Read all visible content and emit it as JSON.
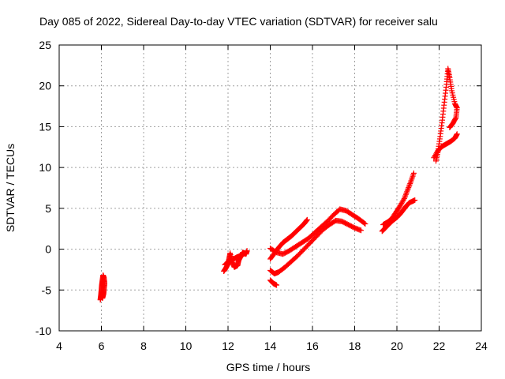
{
  "chart_data": {
    "type": "scatter",
    "title": "Day 085 of 2022, Sidereal Day-to-day VTEC variation (SDTVAR) for receiver salu",
    "xlabel": "GPS time / hours",
    "ylabel": "SDTVAR / TECUs",
    "xlim": [
      4,
      24
    ],
    "ylim": [
      -10,
      25
    ],
    "xticks": [
      4,
      6,
      8,
      10,
      12,
      14,
      16,
      18,
      20,
      22,
      24
    ],
    "yticks": [
      -10,
      -5,
      0,
      5,
      10,
      15,
      20,
      25
    ],
    "grid": true,
    "marker": "+",
    "color": "#ff0000",
    "series": [
      {
        "name": "SDTVAR",
        "segments": [
          [
            [
              5.95,
              -6.2
            ],
            [
              5.98,
              -5.6
            ],
            [
              6.0,
              -5.0
            ],
            [
              6.02,
              -4.4
            ],
            [
              6.05,
              -3.8
            ],
            [
              6.08,
              -3.2
            ],
            [
              6.12,
              -3.5
            ],
            [
              6.15,
              -4.2
            ],
            [
              6.12,
              -4.9
            ],
            [
              6.1,
              -5.5
            ],
            [
              6.05,
              -6.0
            ]
          ],
          [
            [
              11.8,
              -2.7
            ],
            [
              11.9,
              -2.3
            ],
            [
              12.0,
              -1.8
            ],
            [
              12.05,
              -1.2
            ],
            [
              12.1,
              -0.5
            ],
            [
              12.2,
              -1.6
            ],
            [
              12.3,
              -2.2
            ],
            [
              12.45,
              -2.0
            ],
            [
              12.5,
              -1.4
            ],
            [
              12.6,
              -0.9
            ],
            [
              12.7,
              -0.4
            ],
            [
              12.85,
              -0.6
            ],
            [
              12.9,
              -0.2
            ]
          ],
          [
            [
              11.85,
              -1.9
            ],
            [
              12.0,
              -1.6
            ],
            [
              12.2,
              -1.3
            ],
            [
              12.4,
              -1.0
            ],
            [
              12.6,
              -0.8
            ],
            [
              12.8,
              -0.5
            ]
          ],
          [
            [
              14.0,
              0.1
            ],
            [
              14.3,
              -0.4
            ],
            [
              14.6,
              -0.6
            ],
            [
              14.9,
              -0.2
            ],
            [
              15.2,
              0.3
            ],
            [
              15.5,
              0.8
            ],
            [
              15.8,
              1.3
            ],
            [
              16.1,
              2.0
            ],
            [
              16.4,
              2.7
            ],
            [
              16.7,
              3.4
            ],
            [
              17.0,
              4.2
            ],
            [
              17.3,
              4.9
            ],
            [
              17.6,
              4.7
            ],
            [
              17.9,
              4.2
            ],
            [
              18.2,
              3.7
            ],
            [
              18.5,
              3.1
            ]
          ],
          [
            [
              14.0,
              -2.6
            ],
            [
              14.2,
              -3.0
            ],
            [
              14.4,
              -2.8
            ],
            [
              14.7,
              -2.2
            ],
            [
              15.0,
              -1.5
            ],
            [
              15.3,
              -0.8
            ],
            [
              15.6,
              0.0
            ],
            [
              15.9,
              0.8
            ],
            [
              16.2,
              1.6
            ],
            [
              16.5,
              2.4
            ],
            [
              16.8,
              3.0
            ],
            [
              17.1,
              3.5
            ],
            [
              17.4,
              3.4
            ],
            [
              17.7,
              3.0
            ],
            [
              18.0,
              2.6
            ],
            [
              18.3,
              2.3
            ]
          ],
          [
            [
              14.0,
              -1.2
            ],
            [
              14.2,
              -0.5
            ],
            [
              14.4,
              0.2
            ],
            [
              14.6,
              0.8
            ],
            [
              14.8,
              1.2
            ],
            [
              15.0,
              1.6
            ],
            [
              15.2,
              2.1
            ],
            [
              15.4,
              2.6
            ],
            [
              15.6,
              3.1
            ],
            [
              15.75,
              3.6
            ]
          ],
          [
            [
              14.0,
              -3.8
            ],
            [
              14.15,
              -4.2
            ],
            [
              14.3,
              -4.4
            ]
          ],
          [
            [
              19.3,
              2.2
            ],
            [
              19.45,
              2.6
            ],
            [
              19.6,
              3.0
            ],
            [
              19.8,
              3.5
            ],
            [
              20.0,
              3.9
            ],
            [
              20.15,
              4.3
            ],
            [
              20.3,
              4.8
            ],
            [
              20.45,
              5.3
            ],
            [
              20.6,
              5.7
            ],
            [
              20.85,
              6.0
            ]
          ],
          [
            [
              19.35,
              3.0
            ],
            [
              19.55,
              3.3
            ],
            [
              19.75,
              3.7
            ],
            [
              19.95,
              4.5
            ],
            [
              20.15,
              5.3
            ],
            [
              20.35,
              6.2
            ],
            [
              20.5,
              7.2
            ],
            [
              20.65,
              8.2
            ],
            [
              20.8,
              9.3
            ]
          ],
          [
            [
              21.85,
              10.8
            ],
            [
              21.95,
              12.0
            ],
            [
              22.05,
              13.8
            ],
            [
              22.15,
              15.8
            ],
            [
              22.25,
              18.0
            ],
            [
              22.35,
              20.2
            ],
            [
              22.42,
              22.1
            ],
            [
              22.5,
              21.0
            ],
            [
              22.6,
              19.4
            ],
            [
              22.75,
              17.8
            ],
            [
              22.85,
              17.3
            ],
            [
              22.8,
              16.1
            ],
            [
              22.65,
              15.4
            ],
            [
              22.5,
              14.9
            ]
          ],
          [
            [
              21.75,
              11.2
            ],
            [
              21.95,
              12.1
            ],
            [
              22.15,
              12.6
            ],
            [
              22.35,
              12.9
            ],
            [
              22.55,
              13.2
            ],
            [
              22.75,
              13.6
            ],
            [
              22.85,
              14.1
            ]
          ]
        ]
      }
    ]
  }
}
